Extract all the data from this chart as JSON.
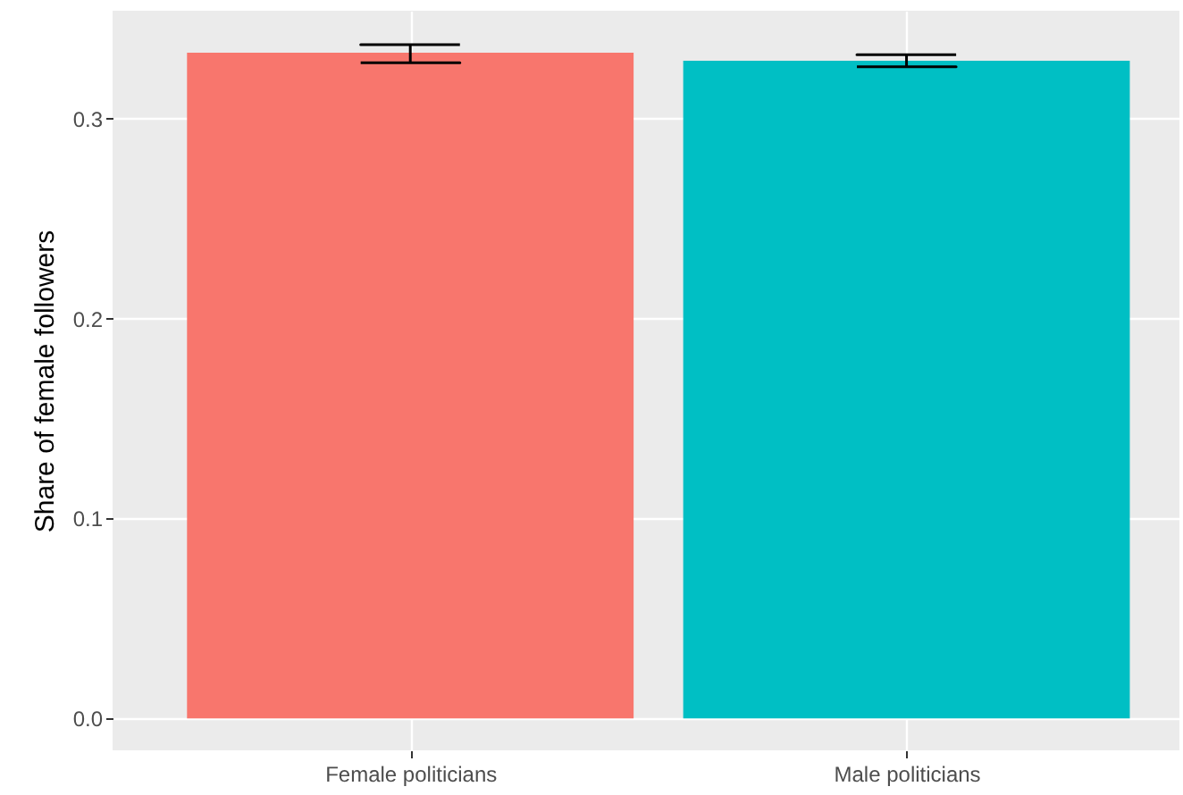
{
  "chart_data": {
    "type": "bar",
    "ylabel": "Share of female followers",
    "categories": [
      "Female politicians",
      "Male politicians"
    ],
    "values": [
      0.333,
      0.329
    ],
    "colors": [
      "#f8766d",
      "#00bfc4"
    ],
    "errors": [
      [
        0.328,
        0.337
      ],
      [
        0.326,
        0.332
      ]
    ],
    "ylim": [
      -0.016,
      0.354
    ],
    "yticks": [
      {
        "value": 0,
        "label": "0.0"
      },
      0.1,
      0.2,
      0.3
    ],
    "grid": true
  }
}
